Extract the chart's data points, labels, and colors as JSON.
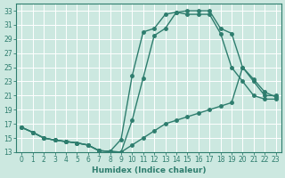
{
  "xlabel": "Humidex (Indice chaleur)",
  "bg_color": "#cce8e0",
  "grid_color": "#ffffff",
  "line_color": "#2e7d6e",
  "xlim": [
    -0.5,
    23.5
  ],
  "ylim": [
    13,
    34
  ],
  "xticks": [
    0,
    1,
    2,
    3,
    4,
    5,
    6,
    7,
    8,
    9,
    10,
    11,
    12,
    13,
    14,
    15,
    16,
    17,
    18,
    19,
    20,
    21,
    22,
    23
  ],
  "yticks": [
    13,
    15,
    17,
    19,
    21,
    23,
    25,
    27,
    29,
    31,
    33
  ],
  "series1_x": [
    0,
    1,
    2,
    3,
    4,
    5,
    6,
    7,
    8,
    9,
    10,
    11,
    12,
    13,
    14,
    15,
    16,
    17,
    18,
    19,
    20,
    21,
    22,
    23
  ],
  "series1_y": [
    16.5,
    15.8,
    15.0,
    14.7,
    14.5,
    14.3,
    14.0,
    13.2,
    13.1,
    13.0,
    17.5,
    23.5,
    29.5,
    30.5,
    32.8,
    33.0,
    33.0,
    33.0,
    30.5,
    29.8,
    25.0,
    23.3,
    21.5,
    20.8
  ],
  "series2_x": [
    0,
    1,
    2,
    3,
    4,
    5,
    6,
    7,
    8,
    9,
    10,
    11,
    12,
    13,
    14,
    15,
    16,
    17,
    18,
    19,
    20,
    21,
    22,
    23
  ],
  "series2_y": [
    16.5,
    15.8,
    15.0,
    14.7,
    14.5,
    14.3,
    14.0,
    13.2,
    13.1,
    14.8,
    23.8,
    30.0,
    30.5,
    32.5,
    32.8,
    32.5,
    32.5,
    32.5,
    29.8,
    25.0,
    23.0,
    21.0,
    20.5,
    20.5
  ],
  "series3_x": [
    0,
    1,
    2,
    3,
    4,
    5,
    6,
    7,
    8,
    9,
    10,
    11,
    12,
    13,
    14,
    15,
    16,
    17,
    18,
    19,
    20,
    21,
    22,
    23
  ],
  "series3_y": [
    16.5,
    15.8,
    15.0,
    14.7,
    14.5,
    14.3,
    14.0,
    13.2,
    13.1,
    13.0,
    14.0,
    15.0,
    16.0,
    17.0,
    17.5,
    18.0,
    18.5,
    19.0,
    19.5,
    20.0,
    25.0,
    23.0,
    21.0,
    21.0
  ],
  "marker_size": 2.5,
  "linewidth": 1.0,
  "tick_fontsize": 5.5,
  "xlabel_fontsize": 6.5
}
